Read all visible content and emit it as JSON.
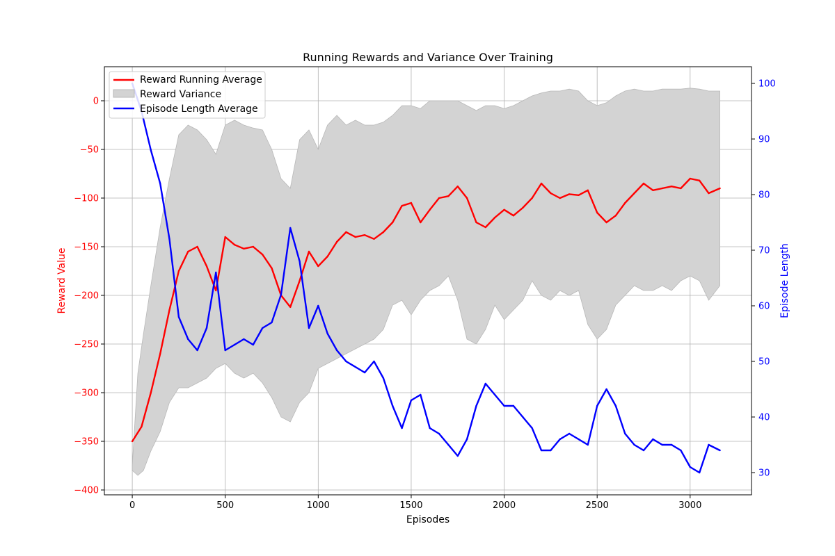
{
  "chart_data": {
    "type": "line",
    "title": "Running Rewards and Variance Over Training",
    "xlabel": "Episodes",
    "ylabel_left": "Reward Value",
    "ylabel_right": "Episode Length",
    "xlim": [
      -150,
      3330
    ],
    "ylim_left": [
      -405,
      35
    ],
    "ylim_right": [
      26,
      103
    ],
    "x_ticks": [
      0,
      500,
      1000,
      1500,
      2000,
      2500,
      3000
    ],
    "y_ticks_left": [
      0,
      -50,
      -100,
      -150,
      -200,
      -250,
      -300,
      -350,
      -400
    ],
    "y_ticks_right": [
      30,
      40,
      50,
      60,
      70,
      80,
      90,
      100
    ],
    "grid": true,
    "legend_position": "top-left",
    "colors": {
      "reward": "#ff0000",
      "variance": "#d3d3d3",
      "variance_edge": "#b8b8b8",
      "length": "#0000ff",
      "left_axis": "#ff0000",
      "right_axis": "#0000ff"
    },
    "series": [
      {
        "name": "Reward Running Average",
        "axis": "left",
        "x": [
          0,
          50,
          100,
          150,
          200,
          250,
          300,
          350,
          400,
          450,
          500,
          550,
          600,
          650,
          700,
          750,
          800,
          850,
          900,
          950,
          1000,
          1050,
          1100,
          1150,
          1200,
          1250,
          1300,
          1350,
          1400,
          1450,
          1500,
          1550,
          1600,
          1650,
          1700,
          1750,
          1800,
          1850,
          1900,
          1950,
          2000,
          2050,
          2100,
          2150,
          2200,
          2250,
          2300,
          2350,
          2400,
          2450,
          2500,
          2550,
          2600,
          2650,
          2700,
          2750,
          2800,
          2850,
          2900,
          2950,
          3000,
          3050,
          3100,
          3160
        ],
        "values": [
          -350,
          -335,
          -300,
          -260,
          -215,
          -175,
          -155,
          -150,
          -170,
          -195,
          -140,
          -148,
          -152,
          -150,
          -158,
          -172,
          -200,
          -212,
          -185,
          -155,
          -170,
          -160,
          -145,
          -135,
          -140,
          -138,
          -142,
          -135,
          -125,
          -108,
          -105,
          -125,
          -112,
          -100,
          -98,
          -88,
          -100,
          -125,
          -130,
          -120,
          -112,
          -118,
          -110,
          -100,
          -85,
          -95,
          -100,
          -96,
          -97,
          -92,
          -115,
          -125,
          -118,
          -105,
          -95,
          -85,
          -92,
          -90,
          -88,
          -90,
          -80,
          -82,
          -95,
          -90
        ]
      },
      {
        "name": "Reward Variance",
        "axis": "left",
        "x": [
          0,
          30,
          60,
          100,
          150,
          200,
          250,
          300,
          350,
          400,
          450,
          500,
          550,
          600,
          650,
          700,
          750,
          800,
          850,
          900,
          950,
          1000,
          1050,
          1100,
          1150,
          1200,
          1250,
          1300,
          1350,
          1400,
          1450,
          1500,
          1550,
          1600,
          1650,
          1700,
          1750,
          1800,
          1850,
          1900,
          1950,
          2000,
          2050,
          2100,
          2150,
          2200,
          2250,
          2300,
          2350,
          2400,
          2450,
          2500,
          2550,
          2600,
          2650,
          2700,
          2750,
          2800,
          2850,
          2900,
          2950,
          3000,
          3050,
          3100,
          3160
        ],
        "upper": [
          -375,
          -280,
          -240,
          -190,
          -130,
          -80,
          -35,
          -25,
          -30,
          -40,
          -55,
          -25,
          -20,
          -25,
          -28,
          -30,
          -50,
          -80,
          -90,
          -40,
          -30,
          -50,
          -25,
          -15,
          -25,
          -20,
          -25,
          -25,
          -22,
          -15,
          -5,
          -5,
          -8,
          0,
          0,
          0,
          0,
          -5,
          -10,
          -5,
          -5,
          -8,
          -5,
          0,
          5,
          8,
          10,
          10,
          12,
          10,
          0,
          -5,
          -2,
          5,
          10,
          12,
          10,
          10,
          12,
          12,
          12,
          13,
          12,
          10,
          10
        ],
        "lower": [
          -380,
          -385,
          -380,
          -360,
          -340,
          -310,
          -295,
          -295,
          -290,
          -285,
          -275,
          -270,
          -280,
          -285,
          -280,
          -290,
          -305,
          -325,
          -330,
          -310,
          -300,
          -275,
          -270,
          -265,
          -260,
          -255,
          -250,
          -245,
          -235,
          -210,
          -205,
          -220,
          -205,
          -195,
          -190,
          -180,
          -205,
          -245,
          -250,
          -235,
          -210,
          -225,
          -215,
          -205,
          -185,
          -200,
          -205,
          -195,
          -200,
          -195,
          -230,
          -245,
          -235,
          -210,
          -200,
          -190,
          -195,
          -195,
          -190,
          -195,
          -185,
          -180,
          -185,
          -205,
          -190
        ]
      },
      {
        "name": "Episode Length Average",
        "axis": "right",
        "x": [
          0,
          50,
          100,
          150,
          200,
          250,
          300,
          350,
          400,
          450,
          500,
          550,
          600,
          650,
          700,
          750,
          800,
          850,
          900,
          950,
          1000,
          1050,
          1100,
          1150,
          1200,
          1250,
          1300,
          1350,
          1400,
          1450,
          1500,
          1550,
          1600,
          1650,
          1700,
          1750,
          1800,
          1850,
          1900,
          1950,
          2000,
          2050,
          2100,
          2150,
          2200,
          2250,
          2300,
          2350,
          2400,
          2450,
          2500,
          2550,
          2600,
          2650,
          2700,
          2750,
          2800,
          2850,
          2900,
          2950,
          3000,
          3050,
          3100,
          3160
        ],
        "values": [
          100,
          95,
          88,
          82,
          72,
          58,
          54,
          52,
          56,
          66,
          52,
          53,
          54,
          53,
          56,
          57,
          62,
          74,
          68,
          56,
          60,
          55,
          52,
          50,
          49,
          48,
          50,
          47,
          42,
          38,
          43,
          44,
          38,
          37,
          35,
          33,
          36,
          42,
          46,
          44,
          42,
          42,
          40,
          38,
          34,
          34,
          36,
          37,
          36,
          35,
          42,
          45,
          42,
          37,
          35,
          34,
          36,
          35,
          35,
          34,
          31,
          30,
          35,
          34
        ]
      }
    ]
  }
}
